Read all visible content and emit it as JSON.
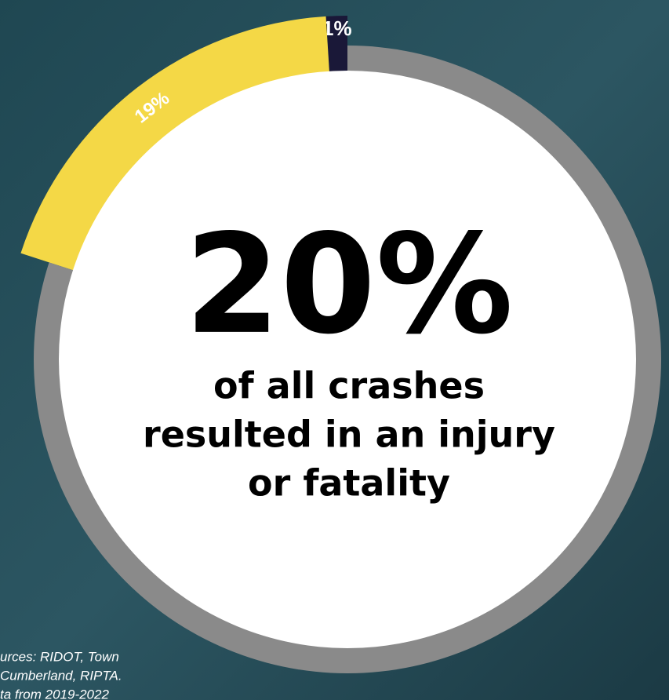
{
  "chart_data": {
    "type": "donut",
    "headline": "20%",
    "subtitle_lines": [
      "of all crashes",
      "resulted in an injury",
      "or fatality"
    ],
    "values": [
      1,
      19,
      80
    ],
    "value_labels": [
      "1%",
      "19%",
      null
    ],
    "colors": [
      "#1a1838",
      "#f4d846",
      "#8a8a8a"
    ],
    "source_lines": [
      "urces: RIDOT, Town",
      "Cumberland, RIPTA.",
      "ta from 2019-2022"
    ]
  }
}
